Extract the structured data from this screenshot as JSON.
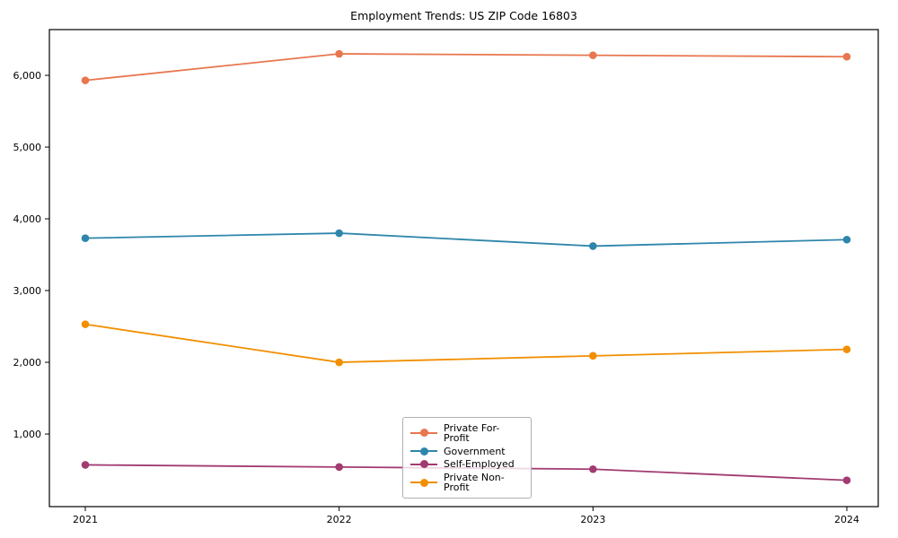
{
  "chart_data": {
    "type": "line",
    "title": "Employment Trends: US ZIP Code 16803",
    "categories": [
      "2021",
      "2022",
      "2023",
      "2024"
    ],
    "series": [
      {
        "name": "Private For-Profit",
        "color": "#E8764F",
        "values": [
          5930,
          6300,
          6280,
          6260
        ]
      },
      {
        "name": "Government",
        "color": "#2E86AB",
        "values": [
          3730,
          3800,
          3620,
          3710
        ]
      },
      {
        "name": "Self-Employed",
        "color": "#A23B72",
        "values": [
          570,
          540,
          510,
          355
        ]
      },
      {
        "name": "Private Non-Profit",
        "color": "#F18F01",
        "values": [
          2530,
          2000,
          2090,
          2180
        ]
      }
    ],
    "y_ticks": [
      {
        "value": 1000,
        "label": "1,000"
      },
      {
        "value": 2000,
        "label": "2,000"
      },
      {
        "value": 3000,
        "label": "3,000"
      },
      {
        "value": 4000,
        "label": "4,000"
      },
      {
        "value": 5000,
        "label": "5,000"
      },
      {
        "value": 6000,
        "label": "6,000"
      }
    ],
    "ylim": [
      -12,
      6638
    ],
    "grid": false,
    "marker": "circle",
    "legend_position": "inside-lower-center"
  }
}
